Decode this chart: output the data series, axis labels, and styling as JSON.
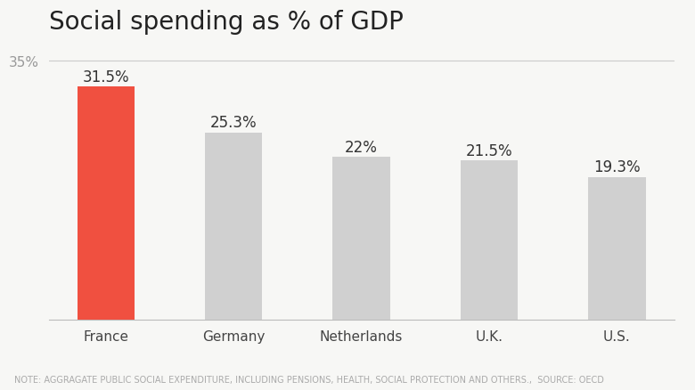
{
  "title": "Social spending as % of GDP",
  "categories": [
    "France",
    "Germany",
    "Netherlands",
    "U.K.",
    "U.S."
  ],
  "values": [
    31.5,
    25.3,
    22.0,
    21.5,
    19.3
  ],
  "labels": [
    "31.5%",
    "25.3%",
    "22%",
    "21.5%",
    "19.3%"
  ],
  "bar_colors": [
    "#f05040",
    "#d0d0d0",
    "#d0d0d0",
    "#d0d0d0",
    "#d0d0d0"
  ],
  "ylim": [
    0,
    37
  ],
  "ytick_label": "35%",
  "ytick_value": 35,
  "background_color": "#f7f7f5",
  "note_text": "NOTE: AGGRAGATE PUBLIC SOCIAL EXPENDITURE, INCLUDING PENSIONS, HEALTH, SOCIAL PROTECTION AND OTHERS.,  SOURCE: OECD",
  "title_fontsize": 20,
  "label_fontsize": 12,
  "tick_fontsize": 11,
  "note_fontsize": 7
}
